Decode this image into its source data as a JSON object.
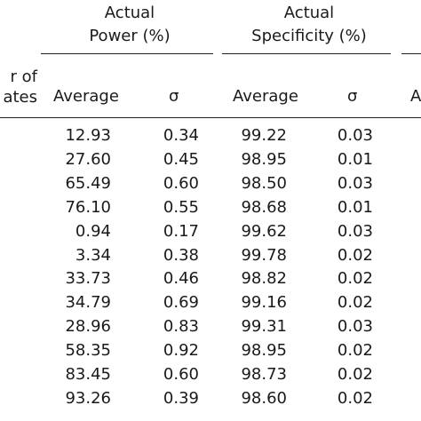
{
  "table": {
    "group_headers": {
      "power": [
        "Actual",
        "Power (%)"
      ],
      "specificity": [
        "Actual",
        "Specificity (%)"
      ]
    },
    "row_header_partial": [
      "r of",
      "ates"
    ],
    "columns": [
      "Average",
      "σ",
      "Average",
      "σ",
      "A"
    ],
    "rows": [
      {
        "power_avg": "12.93",
        "power_sigma": "0.34",
        "spec_avg": "99.22",
        "spec_sigma": "0.03"
      },
      {
        "power_avg": "27.60",
        "power_sigma": "0.45",
        "spec_avg": "98.95",
        "spec_sigma": "0.01"
      },
      {
        "power_avg": "65.49",
        "power_sigma": "0.60",
        "spec_avg": "98.50",
        "spec_sigma": "0.03"
      },
      {
        "power_avg": "76.10",
        "power_sigma": "0.55",
        "spec_avg": "98.68",
        "spec_sigma": "0.01"
      },
      {
        "power_avg": "0.94",
        "power_sigma": "0.17",
        "spec_avg": "99.62",
        "spec_sigma": "0.03"
      },
      {
        "power_avg": "3.34",
        "power_sigma": "0.38",
        "spec_avg": "99.78",
        "spec_sigma": "0.02"
      },
      {
        "power_avg": "33.73",
        "power_sigma": "0.46",
        "spec_avg": "98.82",
        "spec_sigma": "0.02"
      },
      {
        "power_avg": "34.79",
        "power_sigma": "0.69",
        "spec_avg": "99.16",
        "spec_sigma": "0.02"
      },
      {
        "power_avg": "28.96",
        "power_sigma": "0.83",
        "spec_avg": "99.31",
        "spec_sigma": "0.03"
      },
      {
        "power_avg": "58.35",
        "power_sigma": "0.92",
        "spec_avg": "98.95",
        "spec_sigma": "0.02"
      },
      {
        "power_avg": "83.45",
        "power_sigma": "0.60",
        "spec_avg": "98.73",
        "spec_sigma": "0.02"
      },
      {
        "power_avg": "93.26",
        "power_sigma": "0.39",
        "spec_avg": "98.60",
        "spec_sigma": "0.02"
      }
    ]
  }
}
